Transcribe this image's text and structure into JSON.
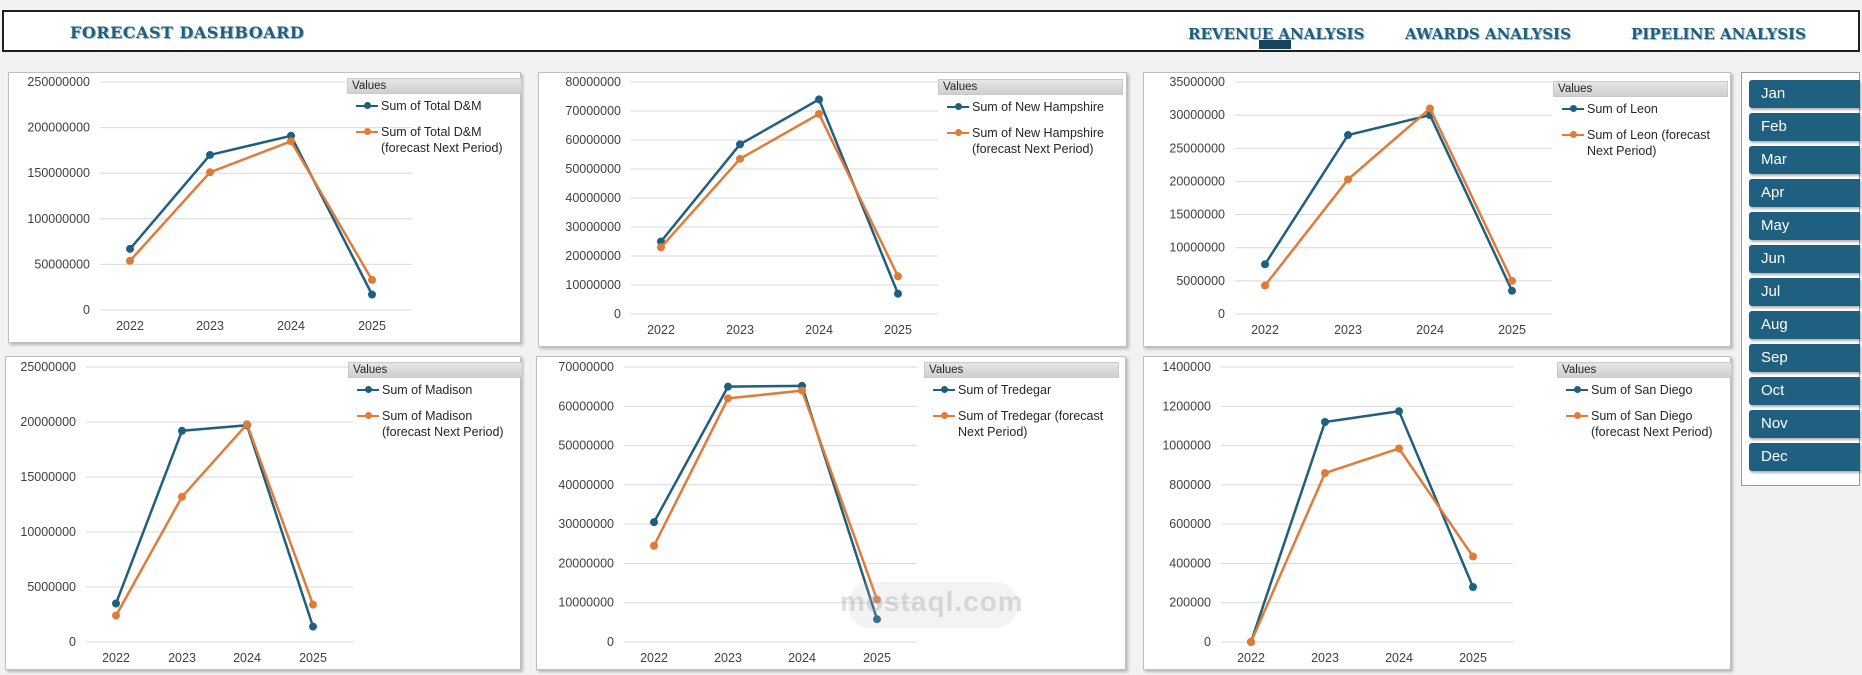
{
  "header": {
    "title": "FORECAST  DASHBOARD",
    "nav": [
      "REVENUE ANALYSIS",
      "AWARDS ANALYSIS",
      "PIPELINE ANALYSIS"
    ]
  },
  "legend_header": "Values",
  "colors": {
    "actual": "#1f5f7f",
    "forecast": "#e07b39"
  },
  "months": [
    "Jan",
    "Feb",
    "Mar",
    "Apr",
    "May",
    "Jun",
    "Jul",
    "Aug",
    "Sep",
    "Oct",
    "Nov",
    "Dec"
  ],
  "watermark": "mostaql.com",
  "chart_data": [
    {
      "type": "line",
      "categories": [
        "2022",
        "2023",
        "2024",
        "2025"
      ],
      "yticks": [
        "0",
        "50000000",
        "100000000",
        "150000000",
        "200000000",
        "250000000"
      ],
      "ylim": [
        0,
        250000000
      ],
      "series": [
        {
          "name": "Sum of Total D&M",
          "values": [
            67000000,
            170000000,
            191000000,
            17000000
          ]
        },
        {
          "name": "Sum of Total D&M (forecast Next Period)",
          "values": [
            54000000,
            151000000,
            185000000,
            33000000
          ]
        }
      ]
    },
    {
      "type": "line",
      "categories": [
        "2022",
        "2023",
        "2024",
        "2025"
      ],
      "yticks": [
        "0",
        "10000000",
        "20000000",
        "30000000",
        "40000000",
        "50000000",
        "60000000",
        "70000000",
        "80000000"
      ],
      "ylim": [
        0,
        80000000
      ],
      "series": [
        {
          "name": "Sum of New Hampshire",
          "values": [
            25000000,
            58500000,
            74000000,
            7000000
          ]
        },
        {
          "name": "Sum of New Hampshire (forecast Next Period)",
          "values": [
            23000000,
            53500000,
            69000000,
            13000000
          ]
        }
      ]
    },
    {
      "type": "line",
      "categories": [
        "2022",
        "2023",
        "2024",
        "2025"
      ],
      "yticks": [
        "0",
        "5000000",
        "10000000",
        "15000000",
        "20000000",
        "25000000",
        "30000000",
        "35000000"
      ],
      "ylim": [
        0,
        35000000
      ],
      "series": [
        {
          "name": "Sum of Leon",
          "values": [
            7500000,
            27000000,
            30000000,
            3500000
          ]
        },
        {
          "name": "Sum of Leon (forecast Next Period)",
          "values": [
            4300000,
            20300000,
            31000000,
            5000000
          ]
        }
      ]
    },
    {
      "type": "line",
      "categories": [
        "2022",
        "2023",
        "2024",
        "2025"
      ],
      "yticks": [
        "0",
        "5000000",
        "10000000",
        "15000000",
        "20000000",
        "25000000"
      ],
      "ylim": [
        0,
        25000000
      ],
      "series": [
        {
          "name": "Sum of Madison",
          "values": [
            3500000,
            19200000,
            19700000,
            1400000
          ]
        },
        {
          "name": "Sum of Madison (forecast Next Period)",
          "values": [
            2400000,
            13200000,
            19800000,
            3400000
          ]
        }
      ]
    },
    {
      "type": "line",
      "categories": [
        "2022",
        "2023",
        "2024",
        "2025"
      ],
      "yticks": [
        "0",
        "10000000",
        "20000000",
        "30000000",
        "40000000",
        "50000000",
        "60000000",
        "70000000"
      ],
      "ylim": [
        0,
        70000000
      ],
      "series": [
        {
          "name": "Sum of Tredegar",
          "values": [
            30500000,
            65000000,
            65200000,
            5800000
          ]
        },
        {
          "name": "Sum of Tredegar (forecast Next Period)",
          "values": [
            24500000,
            62000000,
            64000000,
            10800000
          ]
        }
      ]
    },
    {
      "type": "line",
      "categories": [
        "2022",
        "2023",
        "2024",
        "2025"
      ],
      "yticks": [
        "0",
        "200000",
        "400000",
        "600000",
        "800000",
        "1000000",
        "1200000",
        "1400000"
      ],
      "ylim": [
        0,
        1400000
      ],
      "series": [
        {
          "name": "Sum of San Diego",
          "values": [
            0,
            1120000,
            1175000,
            280000
          ]
        },
        {
          "name": "Sum of San Diego (forecast Next Period)",
          "values": [
            0,
            860000,
            985000,
            435000
          ]
        }
      ]
    }
  ]
}
